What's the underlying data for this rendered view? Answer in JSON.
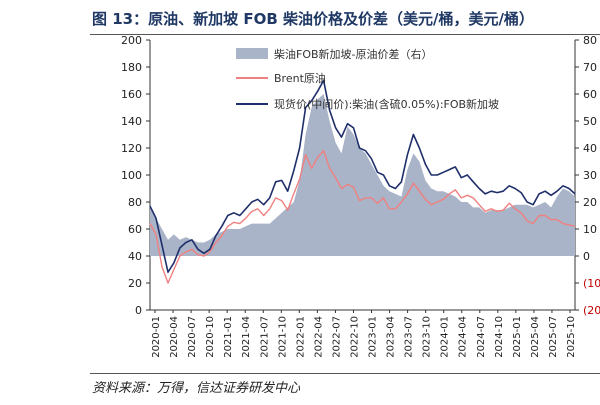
{
  "title": "图 13：原油、新加坡 FOB 柴油价格及价差（美元/桶，美元/桶）",
  "source": "资料来源：万得，信达证券研发中心",
  "colors": {
    "spread": "#aab4c8",
    "brent": "#f08080",
    "diesel": "#1f2f6b",
    "title": "#1f3864"
  },
  "chart_data": {
    "type": "line",
    "title": "原油、新加坡 FOB 柴油价格及价差（美元/桶，美元/桶）",
    "x_tick_labels": [
      "2020-01",
      "2020-04",
      "2020-07",
      "2020-10",
      "2021-01",
      "2021-04",
      "2021-07",
      "2021-10",
      "2022-01",
      "2022-04",
      "2022-07",
      "2022-10",
      "2023-01",
      "2023-04",
      "2023-07",
      "2023-10",
      "2024-01",
      "2024-04",
      "2024-07",
      "2024-10",
      "2025-01",
      "2025-04",
      "2025-07",
      "2025-10"
    ],
    "y_left": {
      "min": 0,
      "max": 200,
      "ticks": [
        "0",
        "20",
        "40",
        "60",
        "80",
        "100",
        "120",
        "140",
        "160",
        "180",
        "200"
      ]
    },
    "y_right": {
      "min": -20,
      "max": 80,
      "ticks": [
        "(20)",
        "(10)",
        "0",
        "10",
        "20",
        "30",
        "40",
        "50",
        "60",
        "70",
        "80"
      ]
    },
    "legend": [
      "柴油FOB新加坡-原油价差（右）",
      "Brent原油",
      "现货价(中间价):柴油(含硫0.05%):FOB新加坡"
    ],
    "x": [
      "2020-01",
      "2020-02",
      "2020-03",
      "2020-04",
      "2020-05",
      "2020-06",
      "2020-07",
      "2020-08",
      "2020-09",
      "2020-10",
      "2020-11",
      "2020-12",
      "2021-01",
      "2021-02",
      "2021-03",
      "2021-04",
      "2021-05",
      "2021-06",
      "2021-07",
      "2021-08",
      "2021-09",
      "2021-10",
      "2021-11",
      "2021-12",
      "2022-01",
      "2022-02",
      "2022-03",
      "2022-04",
      "2022-05",
      "2022-06",
      "2022-07",
      "2022-08",
      "2022-09",
      "2022-10",
      "2022-11",
      "2022-12",
      "2023-01",
      "2023-02",
      "2023-03",
      "2023-04",
      "2023-05",
      "2023-06",
      "2023-07",
      "2023-08",
      "2023-09",
      "2023-10",
      "2023-11",
      "2023-12",
      "2024-01",
      "2024-02",
      "2024-03",
      "2024-04",
      "2024-05",
      "2024-06",
      "2024-07",
      "2024-08",
      "2024-09",
      "2024-10",
      "2024-11",
      "2024-12",
      "2025-01",
      "2025-02",
      "2025-03",
      "2025-04",
      "2025-05",
      "2025-06",
      "2025-07",
      "2025-08",
      "2025-09",
      "2025-10",
      "2025-11",
      "2025-12"
    ],
    "series": [
      {
        "name": "柴油FOB新加坡-原油价差（右）",
        "axis": "right",
        "type": "area",
        "values": [
          18,
          14,
          10,
          6,
          8,
          6,
          7,
          6,
          5,
          5,
          6,
          8,
          9,
          10,
          10,
          10,
          11,
          12,
          12,
          12,
          12,
          14,
          16,
          18,
          20,
          28,
          45,
          55,
          58,
          60,
          50,
          42,
          38,
          48,
          45,
          40,
          38,
          34,
          30,
          26,
          24,
          23,
          22,
          32,
          38,
          35,
          28,
          25,
          24,
          24,
          23,
          22,
          20,
          20,
          18,
          18,
          16,
          17,
          17,
          17,
          18,
          19,
          19,
          19,
          18,
          19,
          20,
          18,
          22,
          25,
          24,
          22
        ]
      },
      {
        "name": "Brent原油",
        "axis": "left",
        "type": "line",
        "values": [
          64,
          56,
          32,
          20,
          30,
          40,
          43,
          45,
          41,
          40,
          43,
          50,
          55,
          62,
          65,
          64,
          68,
          73,
          75,
          70,
          75,
          83,
          81,
          74,
          86,
          97,
          115,
          105,
          113,
          118,
          105,
          98,
          90,
          93,
          91,
          81,
          83,
          83,
          79,
          83,
          75,
          75,
          80,
          86,
          94,
          88,
          82,
          78,
          80,
          82,
          86,
          89,
          83,
          85,
          83,
          78,
          73,
          75,
          73,
          74,
          79,
          75,
          72,
          66,
          64,
          70,
          70,
          67,
          67,
          64,
          63,
          62
        ]
      },
      {
        "name": "现货价(中间价):柴油(含硫0.05%):FOB新加坡",
        "axis": "left",
        "type": "line",
        "values": [
          77,
          68,
          48,
          28,
          35,
          46,
          50,
          52,
          45,
          42,
          45,
          55,
          62,
          70,
          72,
          70,
          75,
          80,
          82,
          78,
          83,
          95,
          96,
          88,
          103,
          120,
          150,
          155,
          162,
          170,
          148,
          135,
          128,
          138,
          135,
          120,
          118,
          112,
          102,
          100,
          92,
          90,
          95,
          115,
          130,
          120,
          108,
          100,
          100,
          102,
          104,
          106,
          98,
          100,
          95,
          90,
          86,
          88,
          87,
          88,
          92,
          90,
          87,
          80,
          78,
          86,
          88,
          85,
          88,
          92,
          90,
          86
        ]
      }
    ]
  }
}
